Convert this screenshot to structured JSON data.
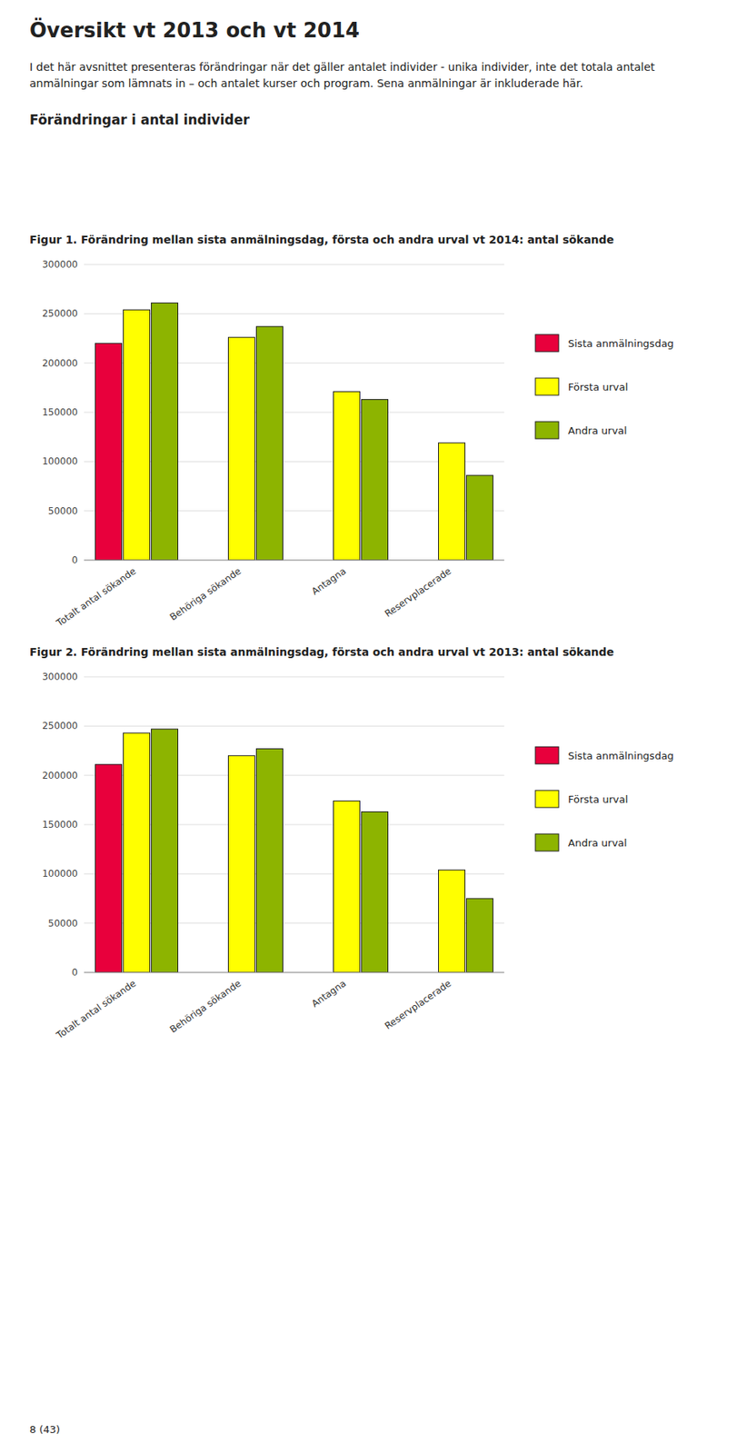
{
  "title": "Översikt vt 2013 och vt 2014",
  "subtitle": "I det här avsnittet presenteras förändringar när det gäller antalet individer - unika individer, inte det totala antalet anmälningar som lämnats in – och antalet kurser och program. Sena anmälningar är inkluderade här.",
  "annotations": [
    "Förändringar i antal individer",
    "8 (43)"
  ],
  "chart_data": [
    {
      "type": "bar",
      "title": "Figur 1. Förändring mellan sista anmälningsdag, första och andra urval vt 2014: antal sökande",
      "categories": [
        "Totalt antal sökande",
        "Behöriga sökande",
        "Antagna",
        "Reservplacerade"
      ],
      "series": [
        {
          "name": "Sista anmälningsdag",
          "color": "#E8003C",
          "values": [
            220000,
            0,
            0,
            0
          ]
        },
        {
          "name": "Första urval",
          "color": "#FFFF00",
          "values": [
            254000,
            226000,
            171000,
            119000
          ]
        },
        {
          "name": "Andra urval",
          "color": "#8DB400",
          "values": [
            261000,
            237000,
            163000,
            86000
          ]
        }
      ],
      "ylim": [
        0,
        300000
      ],
      "yticks": [
        0,
        50000,
        100000,
        150000,
        200000,
        250000,
        300000
      ],
      "grid": true,
      "legend": "right"
    },
    {
      "type": "bar",
      "title": "Figur 2. Förändring mellan sista anmälningsdag, första och andra urval vt 2013: antal sökande",
      "categories": [
        "Totalt antal sökande",
        "Behöriga sökande",
        "Antagna",
        "Reservplacerade"
      ],
      "series": [
        {
          "name": "Sista anmälningsdag",
          "color": "#E8003C",
          "values": [
            211000,
            0,
            0,
            0
          ]
        },
        {
          "name": "Första urval",
          "color": "#FFFF00",
          "values": [
            243000,
            220000,
            174000,
            104000
          ]
        },
        {
          "name": "Andra urval",
          "color": "#8DB400",
          "values": [
            247000,
            227000,
            163000,
            75000
          ]
        }
      ],
      "ylim": [
        0,
        300000
      ],
      "yticks": [
        0,
        50000,
        100000,
        150000,
        200000,
        250000,
        300000
      ],
      "grid": true,
      "legend": "right"
    }
  ]
}
